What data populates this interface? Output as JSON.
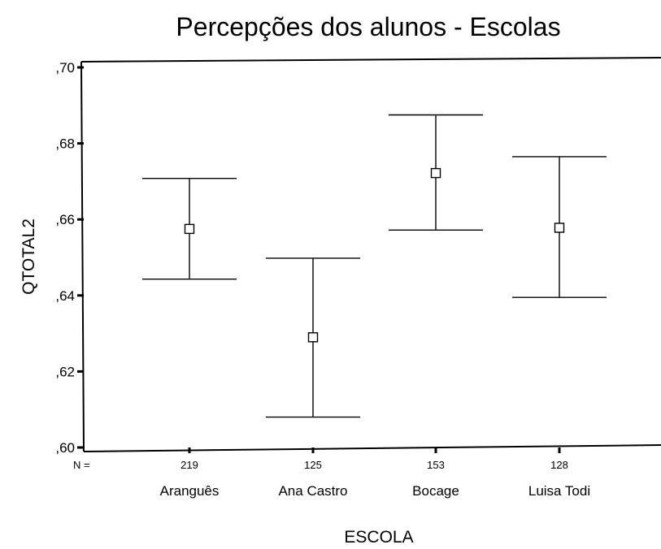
{
  "chart_data": {
    "type": "errorbar",
    "title": "Percepções dos alunos - Escolas",
    "xlabel": "ESCOLA",
    "ylabel": "QTOTAL2",
    "ylim": [
      0.6,
      0.7
    ],
    "yticks": [
      ",70",
      ",68",
      ",66",
      ",64",
      ",62",
      ",60"
    ],
    "n_prefix": "N =",
    "categories": [
      "Aranguês",
      "Ana Castro",
      "Bocage",
      "Luisa Todi"
    ],
    "n": [
      "219",
      "125",
      "153",
      "128"
    ],
    "mean": [
      0.6575,
      0.629,
      0.6722,
      0.6578
    ],
    "lower": [
      0.6443,
      0.608,
      0.6572,
      0.6395
    ],
    "upper": [
      0.6708,
      0.6498,
      0.6875,
      0.6765
    ],
    "grid": false,
    "marker": "open-square"
  }
}
